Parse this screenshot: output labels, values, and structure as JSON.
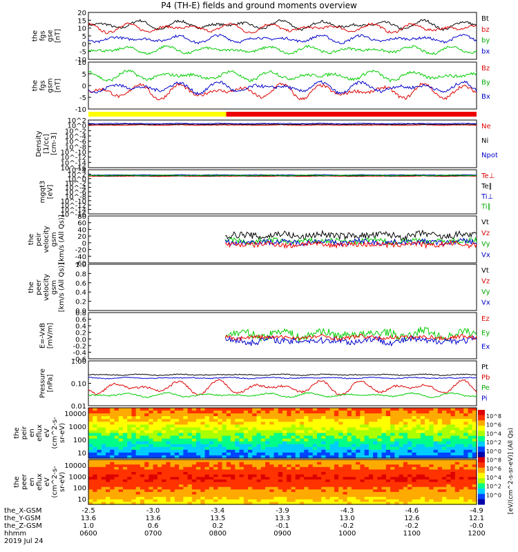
{
  "title": "P4 (TH-E) fields and ground moments overview",
  "chart_data": {
    "type": "line",
    "title": "P4 (TH-E) fields and ground moments overview",
    "xlabel": "hhmm",
    "date": "2019 Jul 24",
    "time_ticks": [
      "0600",
      "0700",
      "0800",
      "0900",
      "1000",
      "1100",
      "1200"
    ],
    "orbit_rows": [
      {
        "label": "the_X-GSM",
        "values": [
          "-2.5",
          "-3.0",
          "-3.4",
          "-3.9",
          "-4.3",
          "-4.6",
          "-4.9"
        ]
      },
      {
        "label": "the_Y-GSM",
        "values": [
          "13.6",
          "13.6",
          "13.5",
          "13.3",
          "13.0",
          "12.6",
          "12.1"
        ]
      },
      {
        "label": "the_Z-GSM",
        "values": [
          "1.0",
          "0.6",
          "0.2",
          "-0.1",
          "-0.2",
          "-0.2",
          "-0.0"
        ]
      }
    ],
    "panels": [
      {
        "id": "fgs-gse",
        "ylabel": [
          "the",
          "fgs",
          "gse",
          "[nT]"
        ],
        "ylim": [
          -10,
          20
        ],
        "yticks": [
          "20",
          "15",
          "10",
          "5",
          "0",
          "-5",
          "-10"
        ],
        "legend": [
          "Bt",
          "bz",
          "by",
          "bx"
        ],
        "legend_colors": [
          "#000000",
          "#dd0000",
          "#00aa00",
          "#0000cc"
        ],
        "series": [
          {
            "name": "Bt",
            "color": "#000000",
            "mean": 12,
            "amp": 3,
            "noise": 0.8,
            "start": 0,
            "end": 1
          },
          {
            "name": "bz",
            "color": "#dd0000",
            "mean": 10,
            "amp": 3,
            "noise": 0.8,
            "start": 0,
            "end": 1
          },
          {
            "name": "by",
            "color": "#0000cc",
            "mean": 3,
            "amp": 2.5,
            "noise": 0.8,
            "start": 0,
            "end": 1
          },
          {
            "name": "bx",
            "color": "#00cc00",
            "mean": -4,
            "amp": 2.5,
            "noise": 0.8,
            "start": 0,
            "end": 1
          }
        ]
      },
      {
        "id": "fgs-gsm",
        "ylabel": [
          "the",
          "fgs",
          "gsm",
          "[nT]"
        ],
        "ylim": [
          -12,
          12
        ],
        "yticks": [
          "10",
          "5",
          "0",
          "-5",
          "-10"
        ],
        "legend": [
          "Bz",
          "By",
          "Bx"
        ],
        "legend_colors": [
          "#dd0000",
          "#00aa00",
          "#0000cc"
        ],
        "series": [
          {
            "name": "Bz",
            "color": "#dd0000",
            "mean": -3,
            "amp": 4,
            "noise": 0.8,
            "start": 0,
            "end": 1
          },
          {
            "name": "By",
            "color": "#00cc00",
            "mean": 5,
            "amp": 2.5,
            "noise": 0.8,
            "start": 0,
            "end": 1
          },
          {
            "name": "Bx",
            "color": "#0000cc",
            "mean": -1,
            "amp": 3,
            "noise": 0.8,
            "start": 0,
            "end": 1
          }
        ]
      },
      {
        "id": "density",
        "ylabel": [
          "Density",
          "[1/cc]",
          "[cm-3]"
        ],
        "ylim": [
          -16,
          3
        ],
        "yticks": [
          "10^2",
          "10^0",
          "10^-2",
          "10^-4",
          "10^-6",
          "10^-8",
          "10^-10",
          "10^-12",
          "10^-14",
          "10^-16"
        ],
        "legend": [
          "Ne",
          "Ni",
          "Npot"
        ],
        "legend_colors": [
          "#dd0000",
          "#000000",
          "#0000cc"
        ],
        "series": [
          {
            "name": "Ne",
            "color": "#dd0000",
            "mean": 1,
            "amp": 0.1,
            "noise": 0.1,
            "start": 0,
            "end": 1
          },
          {
            "name": "Ni",
            "color": "#000000",
            "mean": 1.3,
            "amp": 0.1,
            "noise": 0.1,
            "start": 0,
            "end": 1
          },
          {
            "name": "Npot",
            "color": "#0000cc",
            "mean": 1.6,
            "amp": 0.1,
            "noise": 0.1,
            "start": 0,
            "end": 1
          }
        ]
      },
      {
        "id": "temperature",
        "ylabel": [
          "mgqt3",
          "[eV]"
        ],
        "ylim": [
          -16,
          6
        ],
        "yticks": [
          "10^4",
          "10^2",
          "10^0",
          "10^-2",
          "10^-4",
          "10^-6",
          "10^-8",
          "10^-10",
          "10^-12",
          "10^-14",
          "10^-16"
        ],
        "legend": [
          "Te⊥",
          "Te∥",
          "Ti⊥",
          "Ti∥"
        ],
        "legend_colors": [
          "#dd0000",
          "#000000",
          "#0000cc",
          "#00aa00"
        ],
        "series": [
          {
            "name": "Te⊥",
            "color": "#dd0000",
            "mean": 2.8,
            "amp": 0.1,
            "noise": 0.1,
            "start": 0,
            "end": 1
          },
          {
            "name": "Te∥",
            "color": "#000000",
            "mean": 3.0,
            "amp": 0.1,
            "noise": 0.1,
            "start": 0,
            "end": 1
          },
          {
            "name": "Ti⊥",
            "color": "#0000cc",
            "mean": 3.4,
            "amp": 0.1,
            "noise": 0.1,
            "start": 0,
            "end": 1
          },
          {
            "name": "Ti∥",
            "color": "#00cc00",
            "mean": 3.2,
            "amp": 0.1,
            "noise": 0.1,
            "start": 0,
            "end": 1
          }
        ]
      },
      {
        "id": "peir-velocity",
        "ylabel": [
          "the",
          "peir",
          "velocity",
          "gsm",
          "[km/s (All Qs)]"
        ],
        "ylim": [
          -60,
          80
        ],
        "yticks": [
          "80",
          "60",
          "40",
          "20",
          "0",
          "-20",
          "-40",
          "-60"
        ],
        "legend": [
          "Vt",
          "Vz",
          "Vy",
          "Vx"
        ],
        "legend_colors": [
          "#000000",
          "#dd0000",
          "#00aa00",
          "#0000cc"
        ],
        "series": [
          {
            "name": "Vt",
            "color": "#000000",
            "mean": 22,
            "amp": 6,
            "noise": 10,
            "start": 0.355,
            "end": 1
          },
          {
            "name": "Vz",
            "color": "#00cc00",
            "mean": 5,
            "amp": 4,
            "noise": 8,
            "start": 0.355,
            "end": 1
          },
          {
            "name": "Vy",
            "color": "#0000cc",
            "mean": 2,
            "amp": 4,
            "noise": 8,
            "start": 0.355,
            "end": 1
          },
          {
            "name": "Vx",
            "color": "#ee0000",
            "mean": -5,
            "amp": 4,
            "noise": 8,
            "start": 0.355,
            "end": 1
          }
        ]
      },
      {
        "id": "peer-velocity",
        "ylabel": [
          "the",
          "peer",
          "velocity",
          "gsm",
          "[km/s (All Qs)]"
        ],
        "ylim": [
          0,
          1
        ],
        "yticks": [
          "1.0",
          "0.8",
          "0.6",
          "0.4",
          "0.2",
          "0.0"
        ],
        "legend": [
          "Vt",
          "Vz",
          "Vy",
          "Vx"
        ],
        "legend_colors": [
          "#000000",
          "#dd0000",
          "#00aa00",
          "#0000cc"
        ],
        "series": []
      },
      {
        "id": "efield",
        "ylabel": [
          "E=-VxB",
          "[mV/m]"
        ],
        "ylim": [
          -0.6,
          0.8
        ],
        "yticks": [
          "0.8",
          "0.6",
          "0.4",
          "0.2",
          "0.0",
          "-0.2",
          "-0.4",
          "-0.6"
        ],
        "legend": [
          "Ez",
          "Ey",
          "Ex"
        ],
        "legend_colors": [
          "#dd0000",
          "#00aa00",
          "#0000cc"
        ],
        "series": [
          {
            "name": "Ey",
            "color": "#00cc00",
            "mean": 0.15,
            "amp": 0.12,
            "noise": 0.12,
            "start": 0.355,
            "end": 1
          },
          {
            "name": "Ex",
            "color": "#0000cc",
            "mean": -0.05,
            "amp": 0.06,
            "noise": 0.1,
            "start": 0.355,
            "end": 1
          },
          {
            "name": "Ez",
            "color": "#ee0000",
            "mean": 0.05,
            "amp": 0.04,
            "noise": 0.06,
            "start": 0.355,
            "end": 1
          }
        ]
      },
      {
        "id": "pressure",
        "ylabel": [
          "Pressure",
          "[nPa]"
        ],
        "ylim": [
          -2,
          0.1
        ],
        "log": true,
        "yticks": [
          "1.00",
          "0.10",
          "0.01"
        ],
        "legend": [
          "Pt",
          "Pb",
          "Pe",
          "Pi"
        ],
        "legend_colors": [
          "#000000",
          "#dd0000",
          "#00aa00",
          "#0000cc"
        ],
        "series": [
          {
            "name": "Pt",
            "color": "#000000",
            "mean": -0.55,
            "amp": 0.03,
            "noise": 0.02,
            "start": 0,
            "end": 1
          },
          {
            "name": "Pb",
            "color": "#0000cc",
            "mean": -0.7,
            "amp": 0.03,
            "noise": 0.02,
            "start": 0,
            "end": 1
          },
          {
            "name": "Pe",
            "color": "#dd0000",
            "mean": -1.15,
            "amp": 0.35,
            "noise": 0.05,
            "start": 0,
            "end": 1
          },
          {
            "name": "Pi",
            "color": "#00cc00",
            "mean": -1.5,
            "amp": 0.1,
            "noise": 0.03,
            "start": 0,
            "end": 1
          }
        ]
      }
    ],
    "spectrograms": [
      {
        "id": "peir-spectrogram",
        "ylabel": [
          "the",
          "peir",
          "en",
          "eflux",
          "eV",
          "(cm^2-s-",
          "sr-eV)"
        ],
        "yticks": [
          "10000",
          "1000",
          "100",
          "10"
        ]
      },
      {
        "id": "peer-spectrogram",
        "ylabel": [
          "the",
          "peer",
          "en",
          "eflux",
          "eV",
          "(cm^2-s-",
          "sr-eV)"
        ],
        "yticks": [
          "10000",
          "1000",
          "100",
          "10"
        ]
      }
    ],
    "colorbar": {
      "label": "[eV/(cm^2-s-sr-eV)] (All Qs)",
      "ticks": [
        "10^8",
        "10^6",
        "10^4",
        "10^2",
        "10^0",
        "10^8",
        "10^6",
        "10^4",
        "10^2",
        "10^0"
      ],
      "colors": [
        "#0000aa",
        "#0044ff",
        "#00ccff",
        "#00ff88",
        "#aaff00",
        "#ffff00",
        "#ffaa00",
        "#ff3300",
        "#dd0000"
      ]
    },
    "status_bar": {
      "colors": [
        "#ffff00",
        "#ee0000"
      ],
      "switch": 0.355
    }
  }
}
